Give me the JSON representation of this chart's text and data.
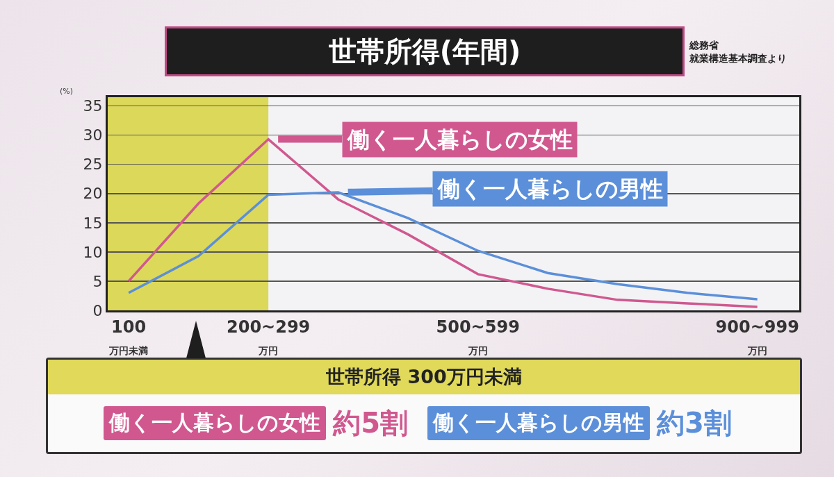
{
  "chart_data": {
    "type": "line",
    "title": "世帯所得(年間)",
    "ylabel": "(%)",
    "categories": [
      "100\n万円未満",
      null,
      "200~299\n万円",
      null,
      null,
      "500~599\n万円",
      null,
      null,
      null,
      "900~999\n万円"
    ],
    "series": [
      {
        "name": "働く一人暮らしの女性",
        "color": "#d0588f",
        "values": [
          5,
          18.3,
          29.3,
          19,
          13,
          6.2,
          3.7,
          1.8,
          1.2,
          0.6
        ]
      },
      {
        "name": "働く一人暮らしの男性",
        "color": "#5b8fd9",
        "values": [
          3,
          9.3,
          19.8,
          20.2,
          15.8,
          10.2,
          6.4,
          4.5,
          3,
          1.9
        ]
      }
    ],
    "ylim": [
      0,
      36.5
    ],
    "yticks": [
      0,
      5,
      10,
      15,
      20,
      25,
      30,
      35
    ],
    "grid": "y",
    "legend": "top",
    "marker": "none",
    "line_style": "solid",
    "bands": [
      {
        "axis": "x",
        "from": "100\n万円未満",
        "to": "200~299\n万円",
        "color": "#dcd85a"
      }
    ],
    "annotations": [
      "総務省",
      "就業構造基本調査より",
      "世帯所得 300万円未満",
      "約5割",
      "約3割"
    ]
  }
}
